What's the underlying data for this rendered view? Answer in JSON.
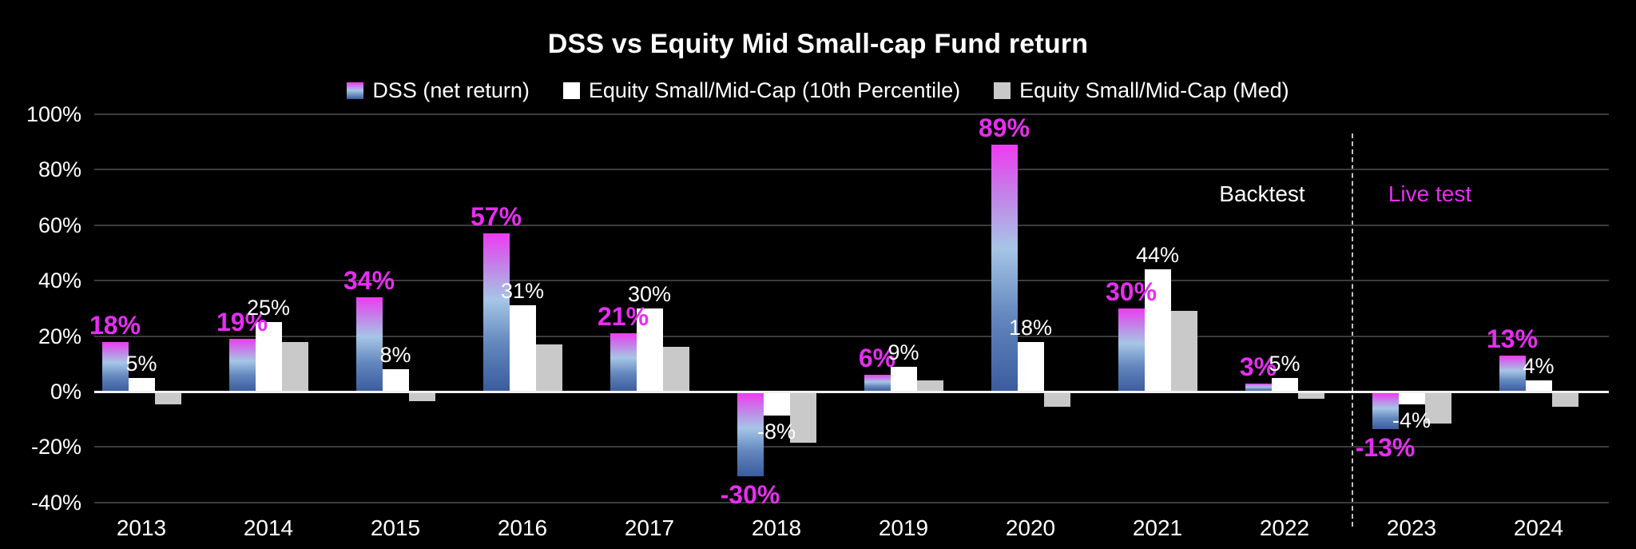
{
  "title": "DSS vs Equity Mid Small-cap Fund return",
  "legend": {
    "items": [
      {
        "id": "dss",
        "label": "DSS (net return)"
      },
      {
        "id": "p10",
        "label": "Equity Small/Mid-Cap (10th Percentile)"
      },
      {
        "id": "med",
        "label": "Equity Small/Mid-Cap (Med)"
      }
    ]
  },
  "annotations": {
    "backtest_label": "Backtest",
    "live_test_label": "Live test"
  },
  "colors": {
    "background": "#000000",
    "grid": "#3c3c3c",
    "zero_line": "#f0f0f0",
    "bar_p10": "#ffffff",
    "bar_med": "#c9c9c9",
    "dss_gradient_top": "#ee3bf2",
    "dss_gradient_mid": "#a6c6e6",
    "dss_gradient_bottom": "#3a5c9e",
    "label_dss_magenta": "#e62ef0",
    "label_p10_white": "#ffffff",
    "divider_dash": "#c2c2c2"
  },
  "chart_data": {
    "type": "bar",
    "title": "DSS vs Equity Mid Small-cap Fund return",
    "categories": [
      "2013",
      "2014",
      "2015",
      "2016",
      "2017",
      "2018",
      "2019",
      "2020",
      "2021",
      "2022",
      "2023",
      "2024"
    ],
    "series": [
      {
        "name": "DSS (net return)",
        "values": [
          18,
          19,
          34,
          57,
          21,
          -30,
          6,
          89,
          30,
          3,
          -13,
          13
        ],
        "labels": [
          "18%",
          "19%",
          "34%",
          "57%",
          "21%",
          "-30%",
          "6%",
          "89%",
          "30%",
          "3%",
          "-13%",
          "13%"
        ]
      },
      {
        "name": "Equity Small/Mid-Cap (10th Percentile)",
        "values": [
          5,
          25,
          8,
          31,
          30,
          -8,
          9,
          18,
          44,
          5,
          -4,
          4
        ],
        "labels": [
          "5%",
          "25%",
          "8%",
          "31%",
          "30%",
          "-8%",
          "9%",
          "18%",
          "44%",
          "5%",
          "-4%",
          "4%"
        ]
      },
      {
        "name": "Equity Small/Mid-Cap (Med)",
        "values": [
          -4,
          18,
          -3,
          17,
          16,
          -18,
          4,
          -5,
          29,
          -2,
          -11,
          -5
        ],
        "labels": []
      }
    ],
    "yticks": [
      {
        "label": "100%",
        "value": 100
      },
      {
        "label": "80%",
        "value": 80
      },
      {
        "label": "60%",
        "value": 60
      },
      {
        "label": "40%",
        "value": 40
      },
      {
        "label": "20%",
        "value": 20
      },
      {
        "label": "0%",
        "value": 0
      },
      {
        "label": "-20%",
        "value": -20
      },
      {
        "label": "-40%",
        "value": -40
      }
    ],
    "ylim": [
      -45,
      100
    ],
    "grid": true,
    "legend_position": "top-center",
    "phase_divider_between": [
      "2022",
      "2023"
    ],
    "phases": [
      {
        "label": "Backtest",
        "years": [
          "2013",
          "2022"
        ]
      },
      {
        "label": "Live test",
        "years": [
          "2023",
          "2024"
        ]
      }
    ]
  }
}
